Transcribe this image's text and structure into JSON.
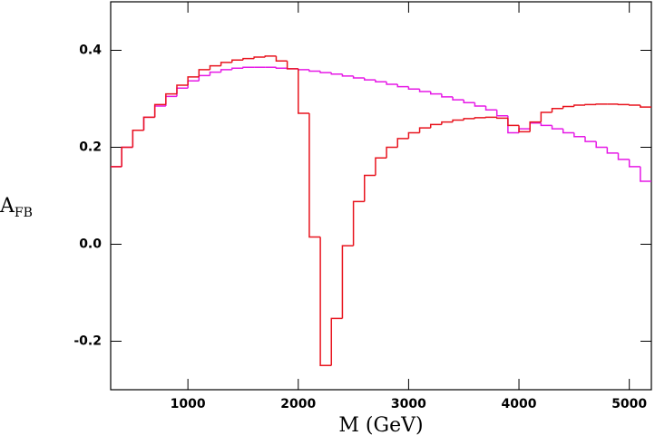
{
  "chart_data": {
    "type": "histogram",
    "xlabel": "M (GeV)",
    "ylabel": {
      "main": "A",
      "sub": "FB"
    },
    "bins": [
      300,
      400,
      500,
      600,
      700,
      800,
      900,
      1000,
      1100,
      1200,
      1300,
      1400,
      1500,
      1600,
      1700,
      1800,
      1900,
      2000,
      2100,
      2200,
      2300,
      2400,
      2500,
      2600,
      2700,
      2800,
      2900,
      3000,
      3100,
      3200,
      3300,
      3400,
      3500,
      3600,
      3700,
      3800,
      3900,
      4000,
      4100,
      4200,
      4300,
      4400,
      4500,
      4600,
      4700,
      4800,
      4900,
      5000,
      5100,
      5200
    ],
    "series": [
      {
        "color": "#e619e6",
        "values": [
          0.16,
          0.2,
          0.235,
          0.262,
          0.285,
          0.305,
          0.322,
          0.337,
          0.348,
          0.355,
          0.36,
          0.363,
          0.365,
          0.365,
          0.365,
          0.363,
          0.362,
          0.36,
          0.357,
          0.354,
          0.351,
          0.347,
          0.343,
          0.339,
          0.335,
          0.33,
          0.325,
          0.32,
          0.315,
          0.31,
          0.304,
          0.298,
          0.292,
          0.285,
          0.277,
          0.265,
          0.23,
          0.238,
          0.25,
          0.245,
          0.238,
          0.23,
          0.222,
          0.212,
          0.2,
          0.188,
          0.175,
          0.16,
          0.13
        ]
      },
      {
        "color": "#e8141e",
        "values": [
          0.16,
          0.2,
          0.235,
          0.262,
          0.288,
          0.31,
          0.328,
          0.345,
          0.36,
          0.368,
          0.375,
          0.38,
          0.383,
          0.386,
          0.388,
          0.378,
          0.362,
          0.27,
          0.015,
          -0.25,
          -0.153,
          -0.003,
          0.088,
          0.142,
          0.178,
          0.2,
          0.218,
          0.23,
          0.24,
          0.247,
          0.252,
          0.256,
          0.259,
          0.261,
          0.262,
          0.26,
          0.245,
          0.232,
          0.252,
          0.272,
          0.28,
          0.284,
          0.287,
          0.288,
          0.289,
          0.289,
          0.288,
          0.287,
          0.283
        ]
      }
    ],
    "xlim": [
      300,
      5200
    ],
    "xticks": [
      1000,
      2000,
      3000,
      4000,
      5000
    ],
    "ylim": [
      -0.3,
      0.5
    ],
    "yticks": [
      -0.2,
      {
        "value": 0,
        "label": "0.0"
      },
      0.2,
      0.4
    ]
  }
}
